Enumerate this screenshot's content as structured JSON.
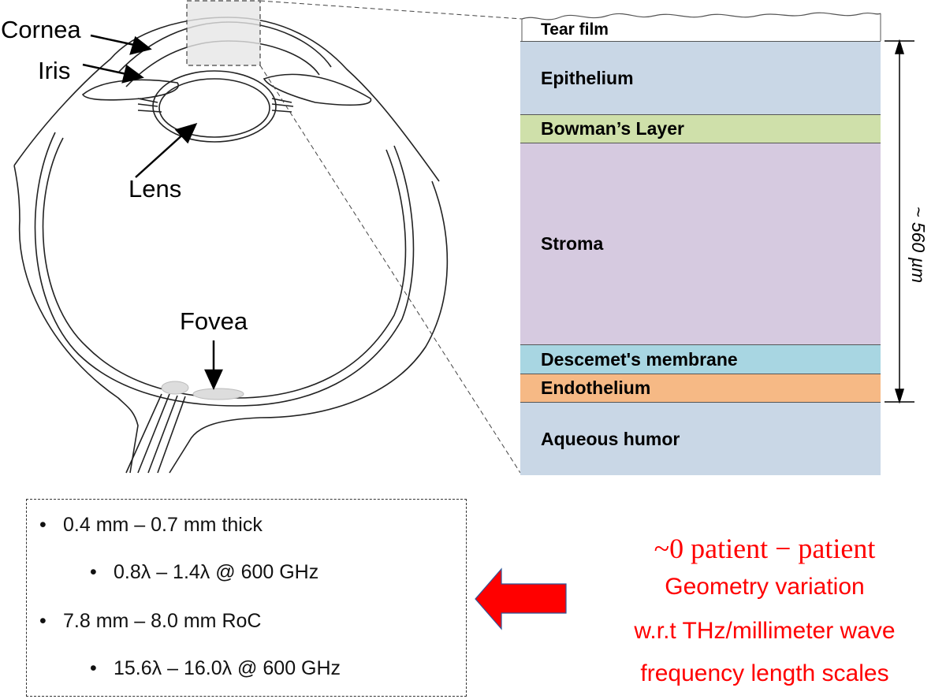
{
  "eye_labels": {
    "cornea": "Cornea",
    "iris": "Iris",
    "lens": "Lens",
    "fovea": "Fovea"
  },
  "cornea_layers": [
    {
      "name": "Tear film",
      "color": "#ffffff"
    },
    {
      "name": "Epithelium",
      "color": "#c9d7e6"
    },
    {
      "name": "Bowman’s Layer",
      "color": "#cfe0aa"
    },
    {
      "name": "Stroma",
      "color": "#d6cae0"
    },
    {
      "name": "Descemet's membrane",
      "color": "#a8d6e2"
    },
    {
      "name": "Endothelium",
      "color": "#f6b985"
    },
    {
      "name": "Aqueous humor",
      "color": "#c9d7e6"
    }
  ],
  "thickness_label": "~ 560 µm",
  "bullets": [
    {
      "text": "0.4 mm – 0.7 mm thick",
      "level": 1
    },
    {
      "text": "0.8λ – 1.4λ @ 600 GHz",
      "level": 2
    },
    {
      "text": "7.8 mm – 8.0 mm RoC",
      "level": 1
    },
    {
      "text": "15.6λ – 16.0λ @ 600 GHz",
      "level": 2
    }
  ],
  "bullet_symbol": "•",
  "callout": {
    "line1": "~0 patient − patient",
    "line2": "Geometry variation",
    "line3": "w.r.t THz/millimeter wave",
    "line4": "frequency length scales",
    "color": "#ff0000",
    "arrow_color": "#ff0000"
  }
}
